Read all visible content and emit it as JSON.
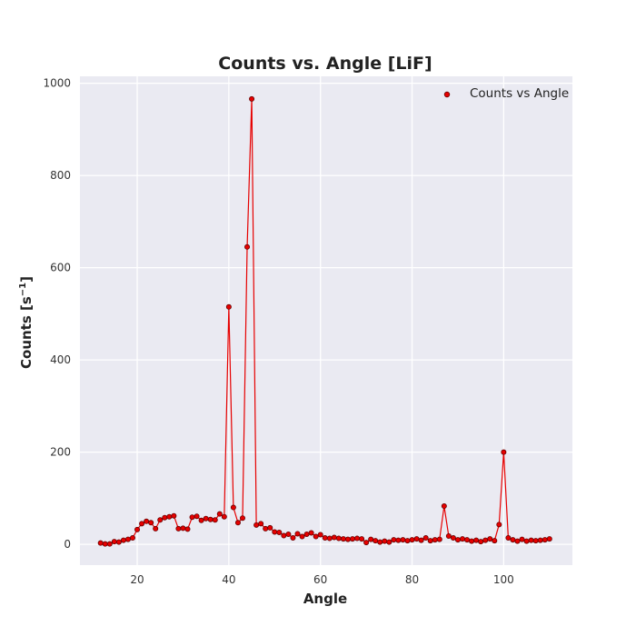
{
  "chart_data": {
    "type": "line",
    "title": "Counts vs. Angle [LiF]",
    "xlabel": "Angle",
    "ylabel_main": "Counts [s",
    "ylabel_exp": "−1",
    "ylabel_close": "]",
    "xlim": [
      7.5,
      115
    ],
    "ylim": [
      -45,
      1015
    ],
    "xticks": [
      20,
      40,
      60,
      80,
      100
    ],
    "yticks": [
      0,
      200,
      400,
      600,
      800,
      1000
    ],
    "grid": true,
    "legend_position": "top-right",
    "series": [
      {
        "name": "Counts vs Angle",
        "color": "#e60000",
        "marker_edge": "#660000",
        "x": [
          12,
          13,
          14,
          15,
          16,
          17,
          18,
          19,
          20,
          21,
          22,
          23,
          24,
          25,
          26,
          27,
          28,
          29,
          30,
          31,
          32,
          33,
          34,
          35,
          36,
          37,
          38,
          39,
          40,
          41,
          42,
          43,
          44,
          45,
          46,
          47,
          48,
          49,
          50,
          51,
          52,
          53,
          54,
          55,
          56,
          57,
          58,
          59,
          60,
          61,
          62,
          63,
          64,
          65,
          66,
          67,
          68,
          69,
          70,
          71,
          72,
          73,
          74,
          75,
          76,
          77,
          78,
          79,
          80,
          81,
          82,
          83,
          84,
          85,
          86,
          87,
          88,
          89,
          90,
          91,
          92,
          93,
          94,
          95,
          96,
          97,
          98,
          99,
          100,
          101,
          102,
          103,
          104,
          105,
          106,
          107,
          108,
          109,
          110
        ],
        "y": [
          3,
          1,
          1,
          6,
          5,
          9,
          11,
          14,
          32,
          45,
          50,
          47,
          34,
          53,
          58,
          60,
          62,
          34,
          35,
          33,
          59,
          61,
          52,
          56,
          54,
          53,
          66,
          60,
          515,
          80,
          47,
          57,
          645,
          966,
          42,
          45,
          34,
          36,
          27,
          26,
          19,
          22,
          14,
          23,
          17,
          22,
          25,
          17,
          21,
          14,
          13,
          15,
          13,
          12,
          11,
          12,
          13,
          12,
          4,
          11,
          8,
          5,
          7,
          5,
          10,
          9,
          10,
          8,
          10,
          12,
          9,
          14,
          8,
          10,
          11,
          83,
          18,
          14,
          10,
          12,
          10,
          7,
          9,
          6,
          9,
          12,
          8,
          43,
          200,
          14,
          10,
          7,
          11,
          7,
          9,
          8,
          9,
          10,
          12
        ]
      }
    ]
  }
}
